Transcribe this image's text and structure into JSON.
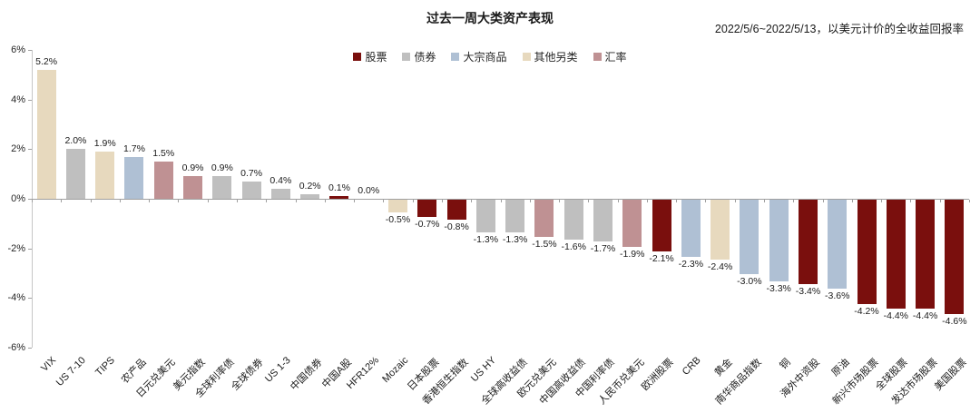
{
  "header": {
    "title": "过去一周大类资产表现",
    "subtitle": "2022/5/6~2022/5/13，以美元计价的全收益回报率"
  },
  "legend": [
    {
      "label": "股票",
      "color": "#7a0f0d"
    },
    {
      "label": "债券",
      "color": "#bfbfbf"
    },
    {
      "label": "大宗商品",
      "color": "#afc0d4"
    },
    {
      "label": "其他另类",
      "color": "#e7d9be"
    },
    {
      "label": "汇率",
      "color": "#bf9193"
    }
  ],
  "chart_data": {
    "type": "bar",
    "title": "过去一周大类资产表现",
    "subtitle": "2022/5/6~2022/5/13，以美元计价的全收益回报率",
    "xlabel": "",
    "ylabel": "",
    "ylim": [
      -6,
      6
    ],
    "ytick_step": 2,
    "ytick_labels": [
      "6%",
      "4%",
      "2%",
      "0%",
      "-2%",
      "-4%",
      "-6%"
    ],
    "grid": "zero-line-only",
    "legend_position": "top-center",
    "categories": [
      "VIX",
      "US 7-10",
      "TIPS",
      "农产品",
      "日元兑美元",
      "美元指数",
      "全球利率债",
      "全球债券",
      "US 1-3",
      "中国债券",
      "中国A股",
      "HFR12%",
      "Mozaic",
      "日本股票",
      "香港恒生指数",
      "US HY",
      "全球高收益债",
      "欧元兑美元",
      "中国高收益债",
      "中国利率债",
      "人民币兑美元",
      "欧洲股票",
      "CRB",
      "黄金",
      "南华商品指数",
      "铜",
      "海外中资股",
      "原油",
      "新兴市场股票",
      "全球股票",
      "发达市场股票",
      "美国股票"
    ],
    "values": [
      5.2,
      2.0,
      1.9,
      1.7,
      1.5,
      0.9,
      0.9,
      0.7,
      0.4,
      0.2,
      0.1,
      0.0,
      -0.5,
      -0.7,
      -0.8,
      -1.3,
      -1.3,
      -1.5,
      -1.6,
      -1.7,
      -1.9,
      -2.1,
      -2.3,
      -2.4,
      -3.0,
      -3.3,
      -3.4,
      -3.6,
      -4.2,
      -4.4,
      -4.4,
      -4.6
    ],
    "value_labels": [
      "5.2%",
      "2.0%",
      "1.9%",
      "1.7%",
      "1.5%",
      "0.9%",
      "0.9%",
      "0.7%",
      "0.4%",
      "0.2%",
      "0.1%",
      "0.0%",
      "-0.5%",
      "-0.7%",
      "-0.8%",
      "-1.3%",
      "-1.3%",
      "-1.5%",
      "-1.6%",
      "-1.7%",
      "-1.9%",
      "-2.1%",
      "-2.3%",
      "-2.4%",
      "-3.0%",
      "-3.3%",
      "-3.4%",
      "-3.6%",
      "-4.2%",
      "-4.4%",
      "-4.4%",
      "-4.6%"
    ],
    "groups": [
      "其他另类",
      "债券",
      "其他另类",
      "大宗商品",
      "汇率",
      "汇率",
      "债券",
      "债券",
      "债券",
      "债券",
      "股票",
      "其他另类",
      "其他另类",
      "股票",
      "股票",
      "债券",
      "债券",
      "汇率",
      "债券",
      "债券",
      "汇率",
      "股票",
      "大宗商品",
      "其他另类",
      "大宗商品",
      "大宗商品",
      "股票",
      "大宗商品",
      "股票",
      "股票",
      "股票",
      "股票"
    ]
  }
}
